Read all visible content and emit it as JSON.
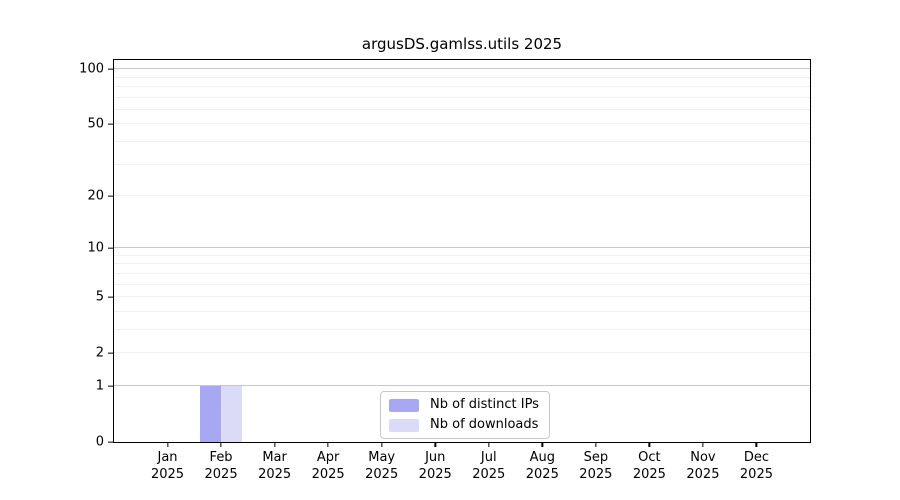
{
  "figure": {
    "background": "#ffffff"
  },
  "chart_data": {
    "type": "bar",
    "title": "argusDS.gamlss.utils 2025",
    "categories": [
      "Jan 2025",
      "Feb 2025",
      "Mar 2025",
      "Apr 2025",
      "May 2025",
      "Jun 2025",
      "Jul 2025",
      "Aug 2025",
      "Sep 2025",
      "Oct 2025",
      "Nov 2025",
      "Dec 2025"
    ],
    "series": [
      {
        "name": "Nb of distinct IPs",
        "color": "#a8a8f2",
        "values": [
          0,
          1,
          0,
          0,
          0,
          0,
          0,
          0,
          0,
          0,
          0,
          0
        ]
      },
      {
        "name": "Nb of downloads",
        "color": "#dbdbf8",
        "values": [
          0,
          1,
          0,
          0,
          0,
          0,
          0,
          0,
          0,
          0,
          0,
          0
        ]
      }
    ],
    "xlabel": "",
    "ylabel": "",
    "yscale": "log1p",
    "ylim": [
      0,
      112
    ],
    "yticks": [
      0,
      1,
      2,
      5,
      10,
      20,
      50,
      100
    ],
    "grid": {
      "major": [
        1,
        10,
        100
      ],
      "minor": [
        2,
        3,
        4,
        5,
        6,
        7,
        8,
        9,
        20,
        30,
        40,
        50,
        60,
        70,
        80,
        90
      ],
      "major_color": "#c8c8c8",
      "minor_color": "#f0f0f0"
    },
    "axis_color": "#000000",
    "legend": {
      "position": "bottom-center-inside"
    }
  }
}
